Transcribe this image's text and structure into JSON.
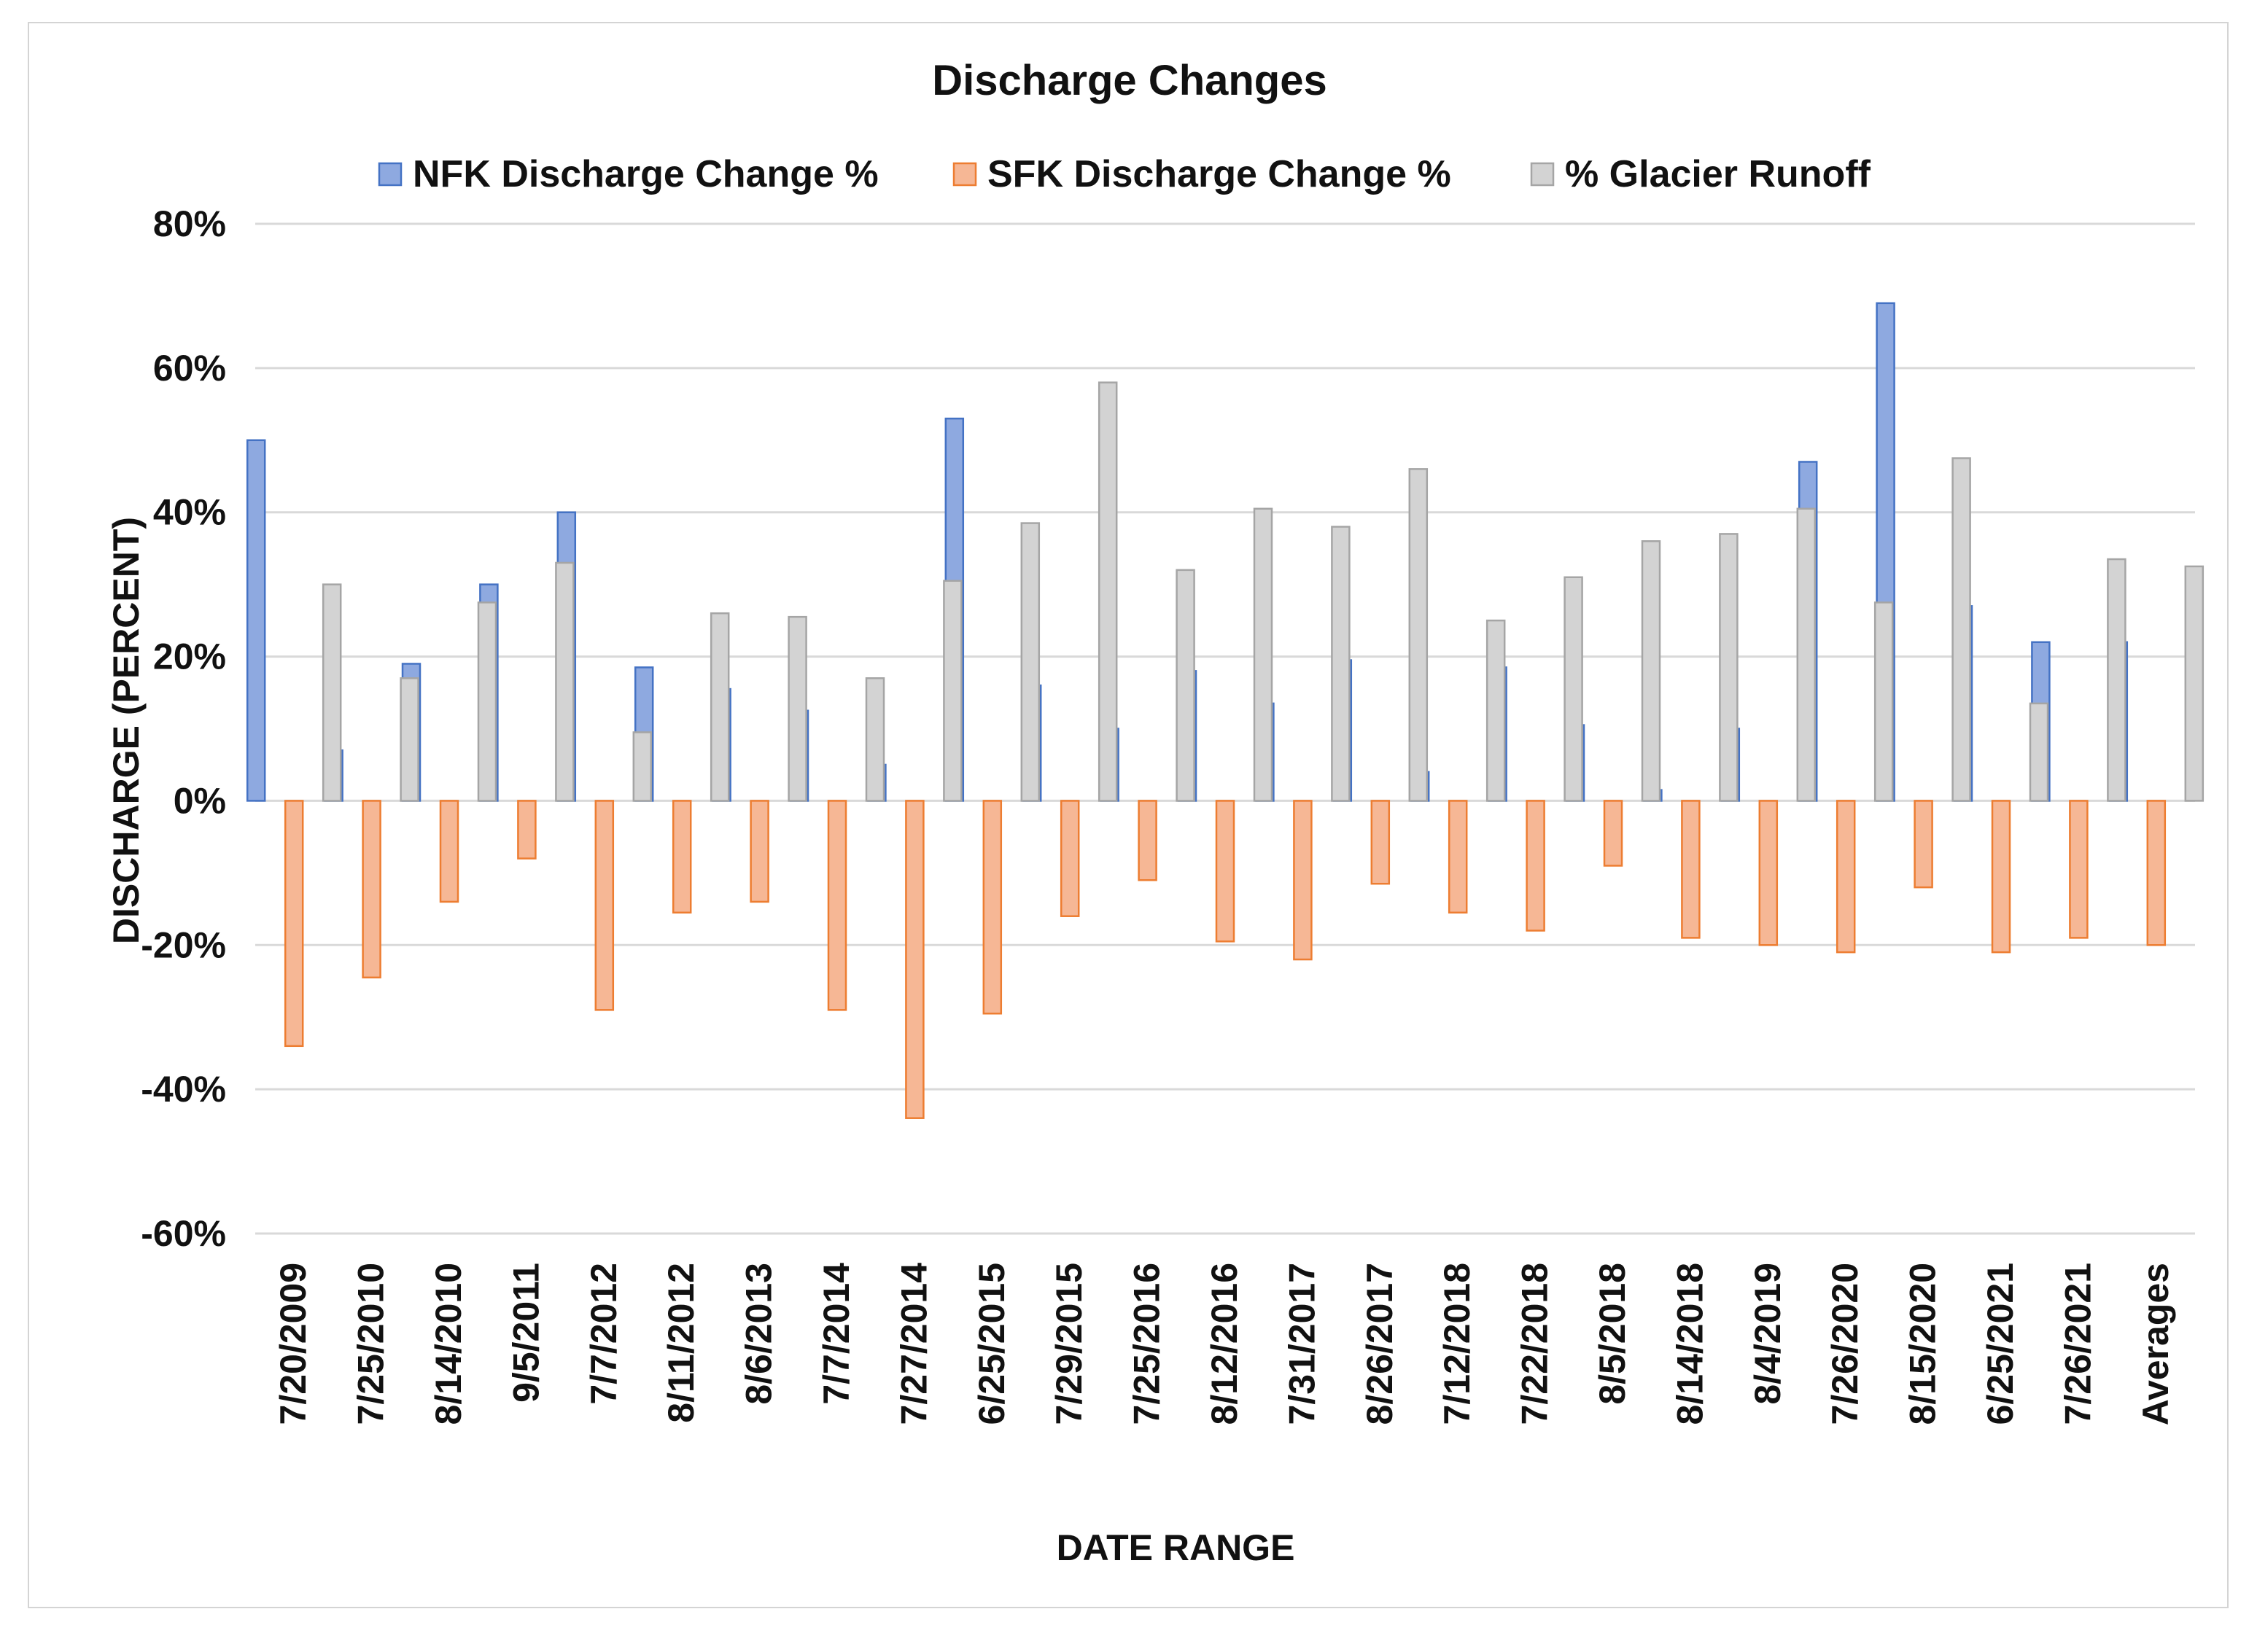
{
  "chart_data": {
    "type": "bar",
    "title": "Discharge  Changes",
    "xlabel": "DATE RANGE",
    "ylabel": "DISCHARGE (PERCENT)",
    "ylim": [
      -60,
      80
    ],
    "ytick_step": 20,
    "ytick_labels": [
      "80%",
      "60%",
      "40%",
      "20%",
      "0%",
      "-20%",
      "-40%",
      "-60%"
    ],
    "grid": true,
    "legend_position": "top-center",
    "categories": [
      "7/20/2009",
      "7/25/2010",
      "8/14/2010",
      "9/5/2011",
      "7/7/2012",
      "8/11/2012",
      "8/6/2013",
      "7/7/2014",
      "7/27/2014",
      "6/25/2015",
      "7/29/2015",
      "7/25/2016",
      "8/12/2016",
      "7/31/2017",
      "8/26/2017",
      "7/12/2018",
      "7/22/2018",
      "8/5/2018",
      "8/14/2018",
      "8/4/2019",
      "7/26/2020",
      "8/15/2020",
      "6/25/2021",
      "7/26/2021",
      "Averages"
    ],
    "series": [
      {
        "name": "NFK Discharge Change %",
        "color": "#8ea9e0",
        "border": "#4472c4",
        "values": [
          50,
          7,
          19,
          30,
          40,
          18.5,
          15.5,
          12.5,
          5,
          53,
          16,
          10,
          18,
          13.5,
          19.5,
          4,
          18.5,
          10.5,
          1.5,
          10,
          47,
          69,
          27,
          22,
          22
        ]
      },
      {
        "name": "SFK Discharge Change %",
        "color": "#f6b795",
        "border": "#ed7d31",
        "values": [
          -34,
          -24.5,
          -14,
          -8,
          -29,
          -15.5,
          -14,
          -29,
          -44,
          -29.5,
          -16,
          -11,
          -19.5,
          -22,
          -11.5,
          -15.5,
          -18,
          -9,
          -19,
          -20,
          -21,
          -12,
          -21,
          -19,
          -20
        ]
      },
      {
        "name": "% Glacier Runoff",
        "color": "#d3d3d3",
        "border": "#a5a5a5",
        "values": [
          30,
          17,
          27.5,
          33,
          9.5,
          26,
          25.5,
          17,
          30.5,
          38.5,
          58,
          32,
          40.5,
          38,
          46,
          25,
          31,
          36,
          37,
          40.5,
          27.5,
          47.5,
          13.5,
          33.5,
          32.5
        ]
      }
    ]
  }
}
